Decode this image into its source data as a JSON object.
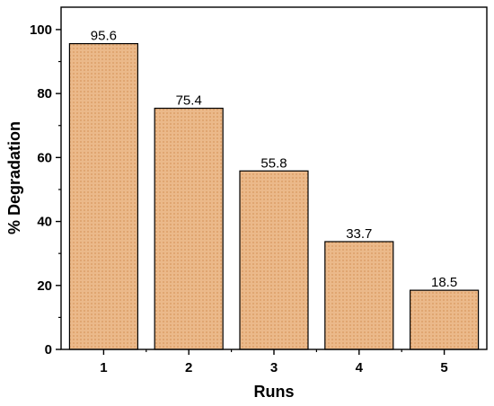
{
  "chart_data": {
    "type": "bar",
    "categories": [
      "1",
      "2",
      "3",
      "4",
      "5"
    ],
    "values": [
      95.6,
      75.4,
      55.8,
      33.7,
      18.5
    ],
    "data_labels": [
      "95.6",
      "75.4",
      "55.8",
      "33.7",
      "18.5"
    ],
    "title": "",
    "xlabel": "Runs",
    "ylabel": "% Degradation",
    "ylim": [
      0,
      107
    ],
    "yticks": [
      0,
      20,
      40,
      60,
      80,
      100
    ],
    "grid": false,
    "bar_fill": "#EBB98A",
    "bar_pattern_color": "#D9985F",
    "bar_edge": "#000000"
  }
}
